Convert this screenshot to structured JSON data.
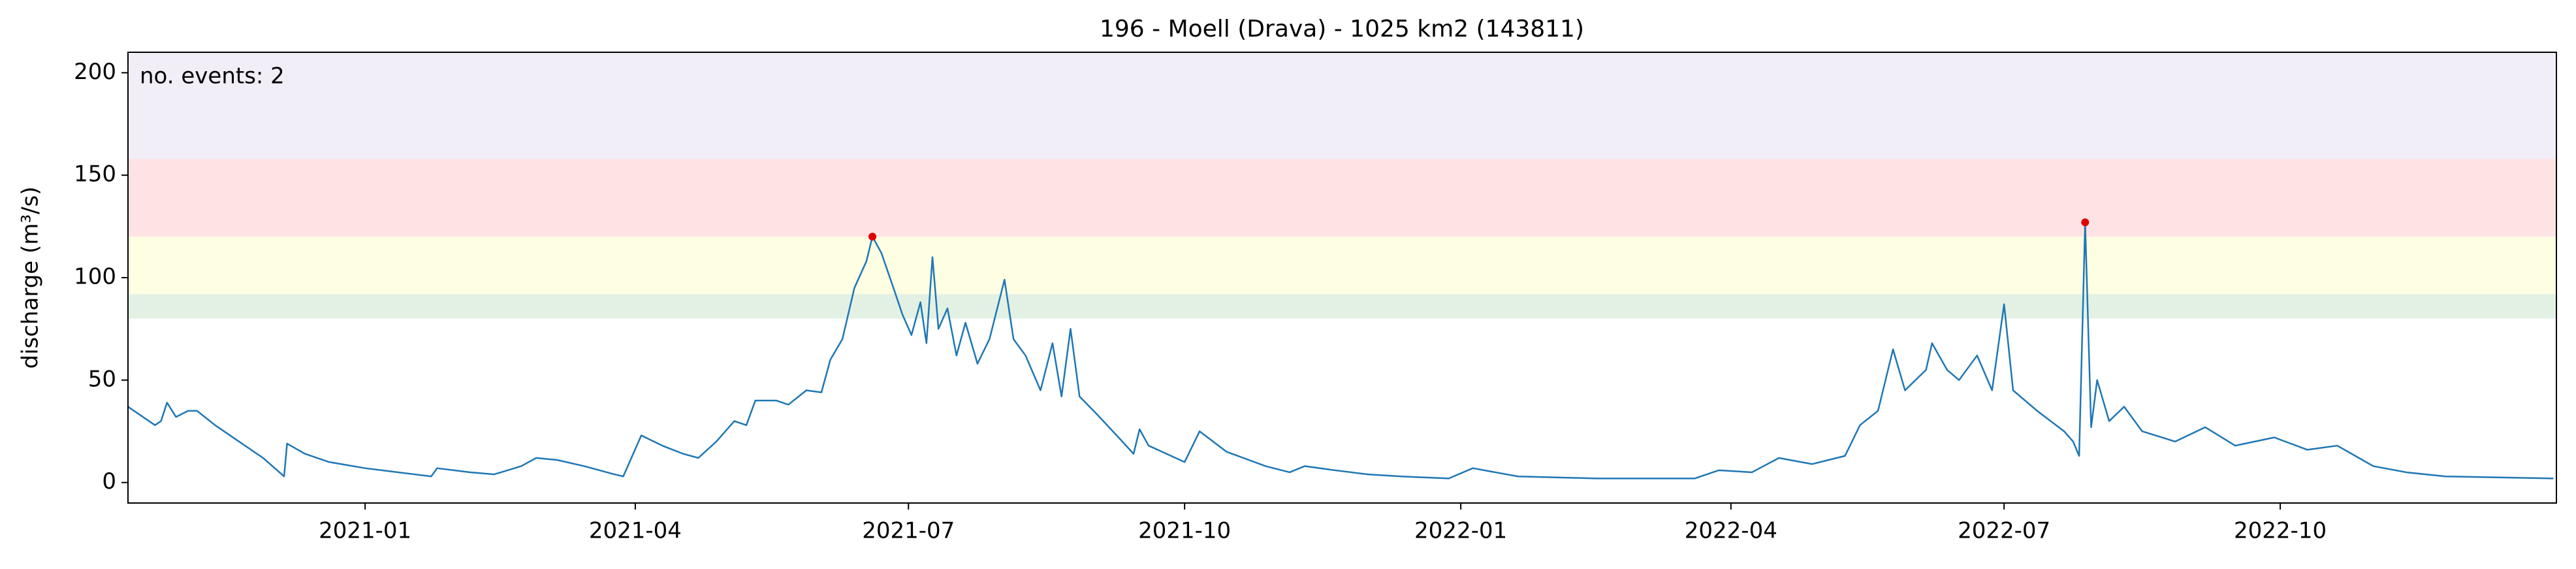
{
  "chart_data": {
    "type": "line",
    "title": "196 - Moell (Drava) - 1025 km2 (143811)",
    "ylabel": "discharge (m³/s)",
    "annotation": {
      "text": "no. events: 2",
      "color": "#e00000"
    },
    "xlim": [
      "2020-10-14",
      "2023-01-01"
    ],
    "ylim": [
      -10,
      210
    ],
    "yticks": [
      0,
      50,
      100,
      150,
      200
    ],
    "xticks": [
      {
        "value": "2021-01-01",
        "label": "2021-01"
      },
      {
        "value": "2021-04-01",
        "label": "2021-04"
      },
      {
        "value": "2021-07-01",
        "label": "2021-07"
      },
      {
        "value": "2021-10-01",
        "label": "2021-10"
      },
      {
        "value": "2022-01-01",
        "label": "2022-01"
      },
      {
        "value": "2022-04-01",
        "label": "2022-04"
      },
      {
        "value": "2022-07-01",
        "label": "2022-07"
      },
      {
        "value": "2022-10-01",
        "label": "2022-10"
      }
    ],
    "bands": [
      {
        "from": 80,
        "to": 92,
        "color": "#e3f1e4"
      },
      {
        "from": 92,
        "to": 120,
        "color": "#fefee3"
      },
      {
        "from": 120,
        "to": 158,
        "color": "#fee3e4"
      },
      {
        "from": 158,
        "to": 210,
        "color": "#f1eef8"
      }
    ],
    "x": [
      "2020-10-14",
      "2020-10-20",
      "2020-10-23",
      "2020-10-25",
      "2020-10-27",
      "2020-10-30",
      "2020-11-03",
      "2020-11-06",
      "2020-11-12",
      "2020-11-20",
      "2020-11-28",
      "2020-12-05",
      "2020-12-06",
      "2020-12-12",
      "2020-12-20",
      "2021-01-01",
      "2021-01-12",
      "2021-01-23",
      "2021-01-25",
      "2021-02-05",
      "2021-02-13",
      "2021-02-22",
      "2021-02-27",
      "2021-03-06",
      "2021-03-15",
      "2021-03-25",
      "2021-03-28",
      "2021-04-03",
      "2021-04-10",
      "2021-04-17",
      "2021-04-22",
      "2021-04-28",
      "2021-05-04",
      "2021-05-08",
      "2021-05-11",
      "2021-05-18",
      "2021-05-22",
      "2021-05-28",
      "2021-06-02",
      "2021-06-05",
      "2021-06-09",
      "2021-06-13",
      "2021-06-17",
      "2021-06-19",
      "2021-06-22",
      "2021-06-26",
      "2021-06-29",
      "2021-07-02",
      "2021-07-05",
      "2021-07-07",
      "2021-07-09",
      "2021-07-11",
      "2021-07-14",
      "2021-07-17",
      "2021-07-20",
      "2021-07-24",
      "2021-07-28",
      "2021-08-02",
      "2021-08-05",
      "2021-08-09",
      "2021-08-14",
      "2021-08-18",
      "2021-08-21",
      "2021-08-24",
      "2021-08-27",
      "2021-09-02",
      "2021-09-09",
      "2021-09-14",
      "2021-09-16",
      "2021-09-19",
      "2021-09-25",
      "2021-10-01",
      "2021-10-06",
      "2021-10-15",
      "2021-10-28",
      "2021-11-05",
      "2021-11-10",
      "2021-11-20",
      "2021-12-01",
      "2021-12-12",
      "2021-12-28",
      "2022-01-05",
      "2022-01-20",
      "2022-02-15",
      "2022-03-20",
      "2022-03-28",
      "2022-04-08",
      "2022-04-17",
      "2022-04-28",
      "2022-05-09",
      "2022-05-14",
      "2022-05-20",
      "2022-05-25",
      "2022-05-29",
      "2022-06-05",
      "2022-06-07",
      "2022-06-12",
      "2022-06-16",
      "2022-06-22",
      "2022-06-27",
      "2022-07-01",
      "2022-07-04",
      "2022-07-12",
      "2022-07-21",
      "2022-07-24",
      "2022-07-26",
      "2022-07-28",
      "2022-07-30",
      "2022-08-01",
      "2022-08-05",
      "2022-08-10",
      "2022-08-16",
      "2022-08-27",
      "2022-09-06",
      "2022-09-16",
      "2022-09-29",
      "2022-10-10",
      "2022-10-20",
      "2022-10-26",
      "2022-11-01",
      "2022-11-12",
      "2022-11-25",
      "2022-12-31"
    ],
    "series": [
      {
        "color": "#1f77b4",
        "values": [
          37,
          31,
          28,
          30,
          39,
          32,
          35,
          35,
          28,
          20,
          12,
          3,
          19,
          14,
          10,
          7,
          5,
          3,
          7,
          5,
          4,
          8,
          12,
          11,
          8,
          4,
          3,
          23,
          18,
          14,
          12,
          20,
          30,
          28,
          40,
          40,
          38,
          45,
          44,
          60,
          70,
          95,
          108,
          120,
          112,
          95,
          82,
          72,
          88,
          68,
          110,
          75,
          85,
          62,
          78,
          58,
          70,
          99,
          70,
          62,
          45,
          68,
          42,
          75,
          42,
          33,
          22,
          14,
          26,
          18,
          14,
          10,
          25,
          15,
          8,
          5,
          8,
          6,
          4,
          3,
          2,
          7,
          3,
          2,
          2,
          6,
          5,
          12,
          9,
          13,
          28,
          35,
          65,
          45,
          55,
          68,
          55,
          50,
          62,
          45,
          87,
          45,
          35,
          25,
          20,
          13,
          127,
          27,
          50,
          30,
          37,
          25,
          20,
          27,
          18,
          22,
          16,
          18,
          13,
          8,
          5,
          3,
          2
        ]
      }
    ],
    "events": {
      "color": "#e00000",
      "x": [
        "2021-06-19",
        "2022-07-28"
      ],
      "values": [
        120,
        127
      ]
    }
  }
}
